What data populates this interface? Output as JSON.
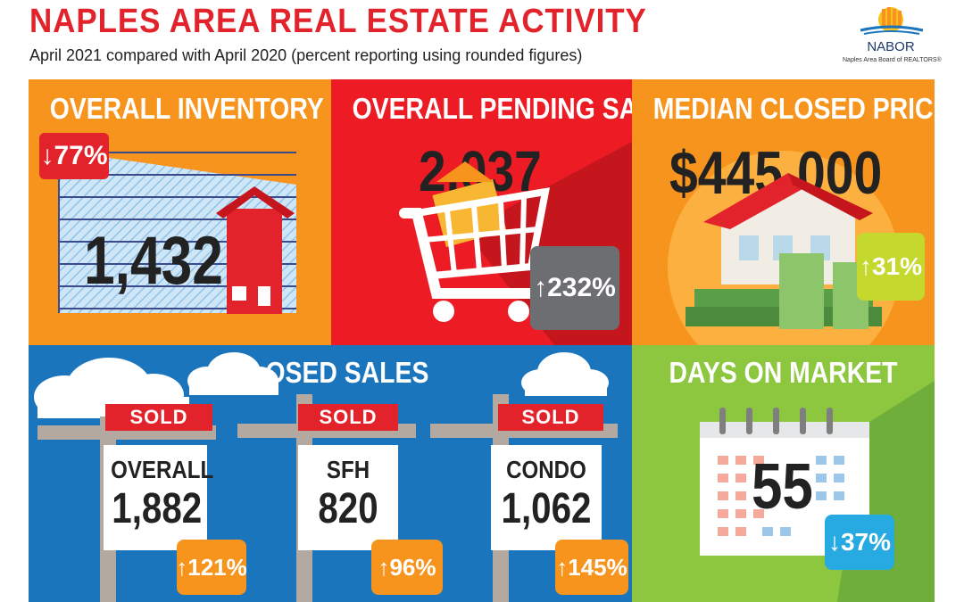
{
  "header": {
    "title": "NAPLES AREA REAL ESTATE ACTIVITY",
    "subtitle": "April 2021 compared with April 2020 (percent reporting using rounded figures)"
  },
  "logo": {
    "name": "NABOR",
    "tagline": "Naples Area Board of REALTORS®"
  },
  "inventory": {
    "title": "OVERALL INVENTORY",
    "value": "1,432",
    "change": "77%",
    "direction": "down",
    "color": "#f7941d"
  },
  "pending": {
    "title": "OVERALL PENDING SALES",
    "value": "2,037",
    "change": "232%",
    "direction": "up",
    "color": "#ed1c24"
  },
  "median": {
    "title": "MEDIAN CLOSED PRICE",
    "value": "$445,000",
    "change": "31%",
    "direction": "up",
    "color": "#f7941d"
  },
  "closed": {
    "title": "CLOSED SALES",
    "color": "#1b75bc",
    "signs": [
      {
        "sold": "SOLD",
        "label": "OVERALL",
        "value": "1,882",
        "change": "121%",
        "direction": "up"
      },
      {
        "sold": "SOLD",
        "label": "SFH",
        "value": "820",
        "change": "96%",
        "direction": "up"
      },
      {
        "sold": "SOLD",
        "label": "CONDO",
        "value": "1,062",
        "change": "145%",
        "direction": "up"
      }
    ]
  },
  "days": {
    "title": "DAYS ON MARKET",
    "value": "55",
    "change": "37%",
    "direction": "down",
    "color": "#8dc63f"
  }
}
